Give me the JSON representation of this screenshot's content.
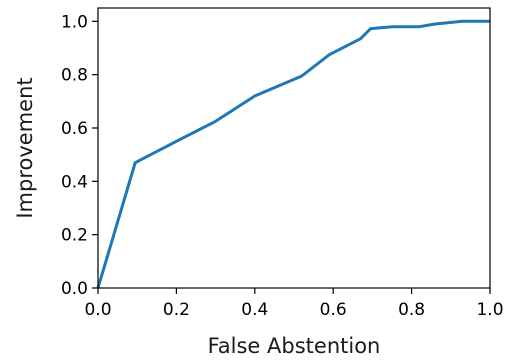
{
  "chart_data": {
    "type": "line",
    "xlabel": "False Abstention",
    "ylabel": "Improvement",
    "xlim": [
      0.0,
      1.0
    ],
    "ylim": [
      0.0,
      1.05
    ],
    "grid": false,
    "x_ticks": [
      "0.0",
      "0.2",
      "0.4",
      "0.6",
      "0.8",
      "1.0"
    ],
    "y_ticks": [
      "0.0",
      "0.2",
      "0.4",
      "0.6",
      "0.8",
      "1.0"
    ],
    "series": [
      {
        "color": "#1f77b4",
        "x": [
          0.0,
          0.095,
          0.2,
          0.3,
          0.4,
          0.52,
          0.59,
          0.67,
          0.695,
          0.75,
          0.82,
          0.86,
          0.93,
          1.0
        ],
        "y": [
          0.0,
          0.47,
          0.55,
          0.625,
          0.72,
          0.795,
          0.875,
          0.935,
          0.972,
          0.98,
          0.98,
          0.99,
          1.0,
          1.0
        ]
      }
    ]
  }
}
